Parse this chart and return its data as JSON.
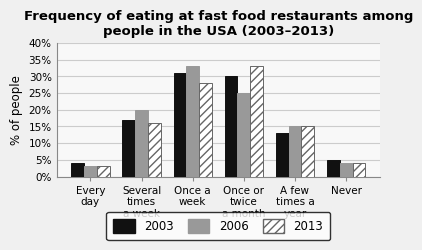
{
  "title": "Frequency of eating at fast food restaurants among\npeople in the USA (2003–2013)",
  "categories": [
    "Every\nday",
    "Several\ntimes\na week",
    "Once a\nweek",
    "Once or\ntwice\na month",
    "A few\ntimes a\nyear",
    "Never"
  ],
  "series": {
    "2003": [
      4,
      17,
      31,
      30,
      13,
      5
    ],
    "2006": [
      3,
      20,
      33,
      25,
      15,
      4
    ],
    "2013": [
      3,
      16,
      28,
      33,
      15,
      4
    ]
  },
  "bar_colors": {
    "2003": "#111111",
    "2006": "#999999",
    "2013": "#ffffff"
  },
  "bar_edgecolors": {
    "2003": "#111111",
    "2006": "#999999",
    "2013": "#666666"
  },
  "hatch_patterns": {
    "2003": "",
    "2006": "",
    "2013": "////"
  },
  "ylabel": "% of people",
  "ylim": [
    0,
    40
  ],
  "yticks": [
    0,
    5,
    10,
    15,
    20,
    25,
    30,
    35,
    40
  ],
  "ytick_labels": [
    "0%",
    "5%",
    "10%",
    "15%",
    "20%",
    "25%",
    "30%",
    "35%",
    "40%"
  ],
  "legend_labels": [
    "2003",
    "2006",
    "2013"
  ],
  "title_fontsize": 9.5,
  "axis_label_fontsize": 8.5,
  "tick_fontsize": 7.5,
  "legend_fontsize": 8.5,
  "background_color": "#f0f0f0",
  "plot_bg_color": "#f8f8f8",
  "grid_color": "#cccccc"
}
